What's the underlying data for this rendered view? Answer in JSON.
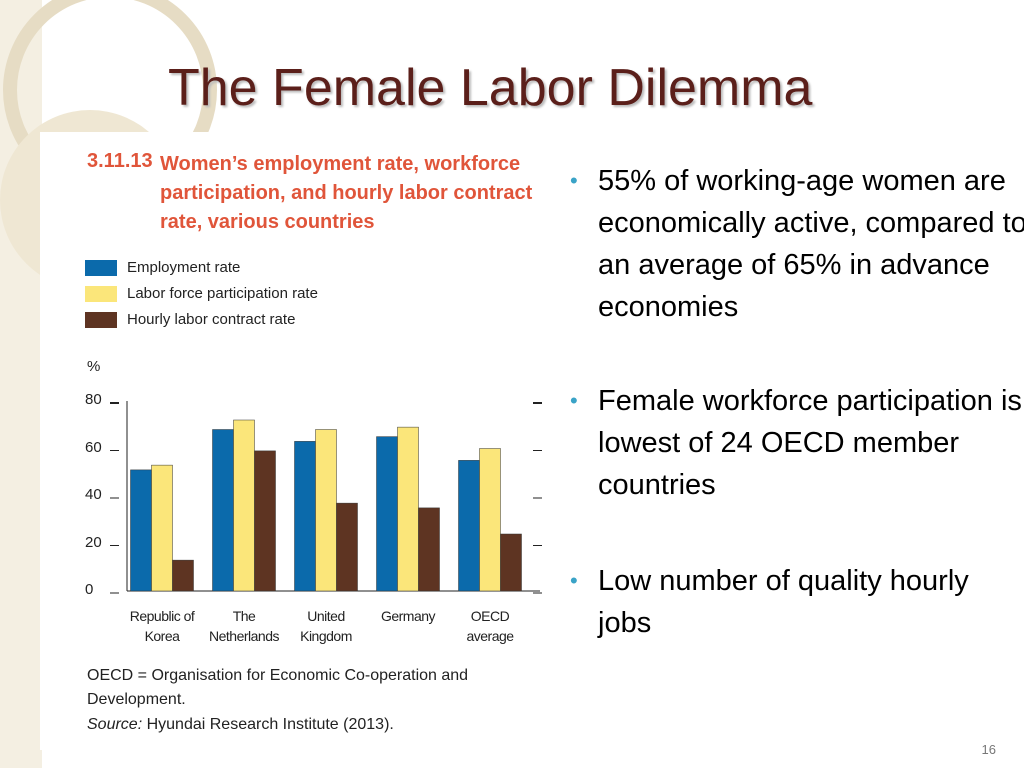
{
  "slide": {
    "title": "The Female Labor Dilemma",
    "bullets": [
      "55% of working-age women are economically active, compared to an average of 65% in advance economies",
      "Female workforce participation is lowest of 24 OECD member countries",
      "Low number of quality hourly jobs"
    ],
    "page_number": "16"
  },
  "chart_data": {
    "type": "bar",
    "figure_number": "3.11.13",
    "title": "Women’s employment rate, workforce participation, and hourly labor contract rate, various countries",
    "y_label": "%",
    "categories": [
      "Republic of Korea",
      "The Netherlands",
      "United Kingdom",
      "Germany",
      "OECD average"
    ],
    "series": [
      {
        "name": "Employment rate",
        "color": "#0b6aab",
        "values": [
          51,
          68,
          63,
          65,
          55
        ]
      },
      {
        "name": "Labor force participation rate",
        "color": "#fbe67a",
        "values": [
          53,
          72,
          68,
          69,
          60
        ]
      },
      {
        "name": "Hourly labor contract rate",
        "color": "#5e3422",
        "values": [
          13,
          59,
          37,
          35,
          24
        ]
      }
    ],
    "ylim": [
      0,
      80
    ],
    "yticks": [
      0,
      20,
      40,
      60,
      80
    ],
    "note": "OECD = Organisation for Economic Co-operation and Development.",
    "source_label": "Source:",
    "source": "Hyundai Research Institute (2013)."
  }
}
